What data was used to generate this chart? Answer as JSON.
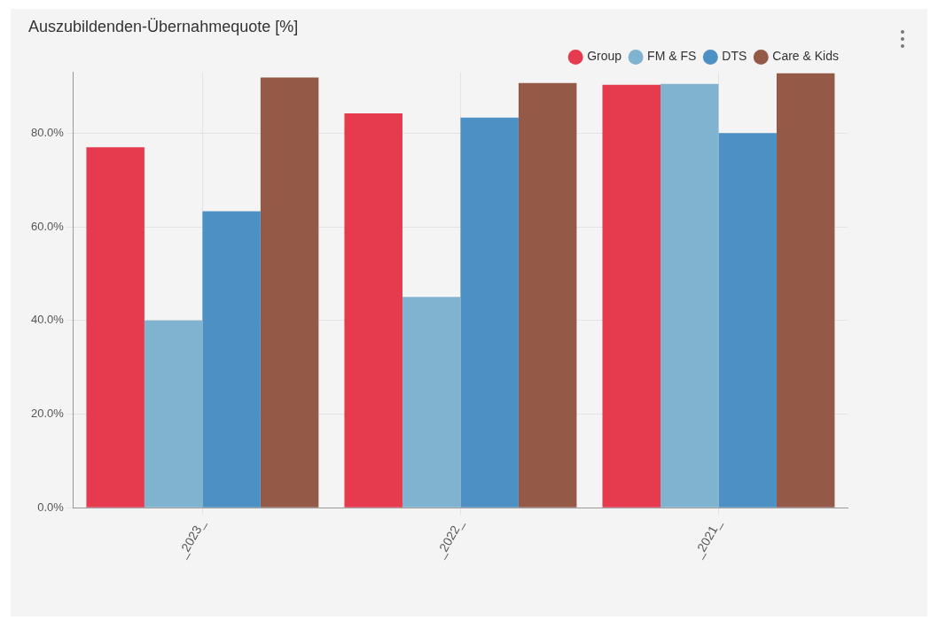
{
  "chart_data": {
    "type": "bar",
    "title": "Auszubildenden-Übernahmequote [%]",
    "categories": [
      "_2023_",
      "_2022_",
      "_2021_"
    ],
    "series": [
      {
        "name": "Group",
        "color": "#e63a4e",
        "values": [
          77,
          84.2,
          90.3
        ]
      },
      {
        "name": "FM & FS",
        "color": "#7fb3cf",
        "values": [
          40,
          45,
          90.5
        ]
      },
      {
        "name": "DTS",
        "color": "#4d91c4",
        "values": [
          63.3,
          83.3,
          80
        ]
      },
      {
        "name": "Care & Kids",
        "color": "#945a47",
        "values": [
          91.9,
          90.7,
          92.8
        ]
      }
    ],
    "ylim": [
      0,
      93
    ],
    "yticks": [
      {
        "value": 0,
        "label": "0.0%"
      },
      {
        "value": 20,
        "label": "20.0%"
      },
      {
        "value": 40,
        "label": "40.0%"
      },
      {
        "value": 60,
        "label": "60.0%"
      },
      {
        "value": 80,
        "label": "80.0%"
      }
    ],
    "grid": true,
    "legend": "top right"
  }
}
